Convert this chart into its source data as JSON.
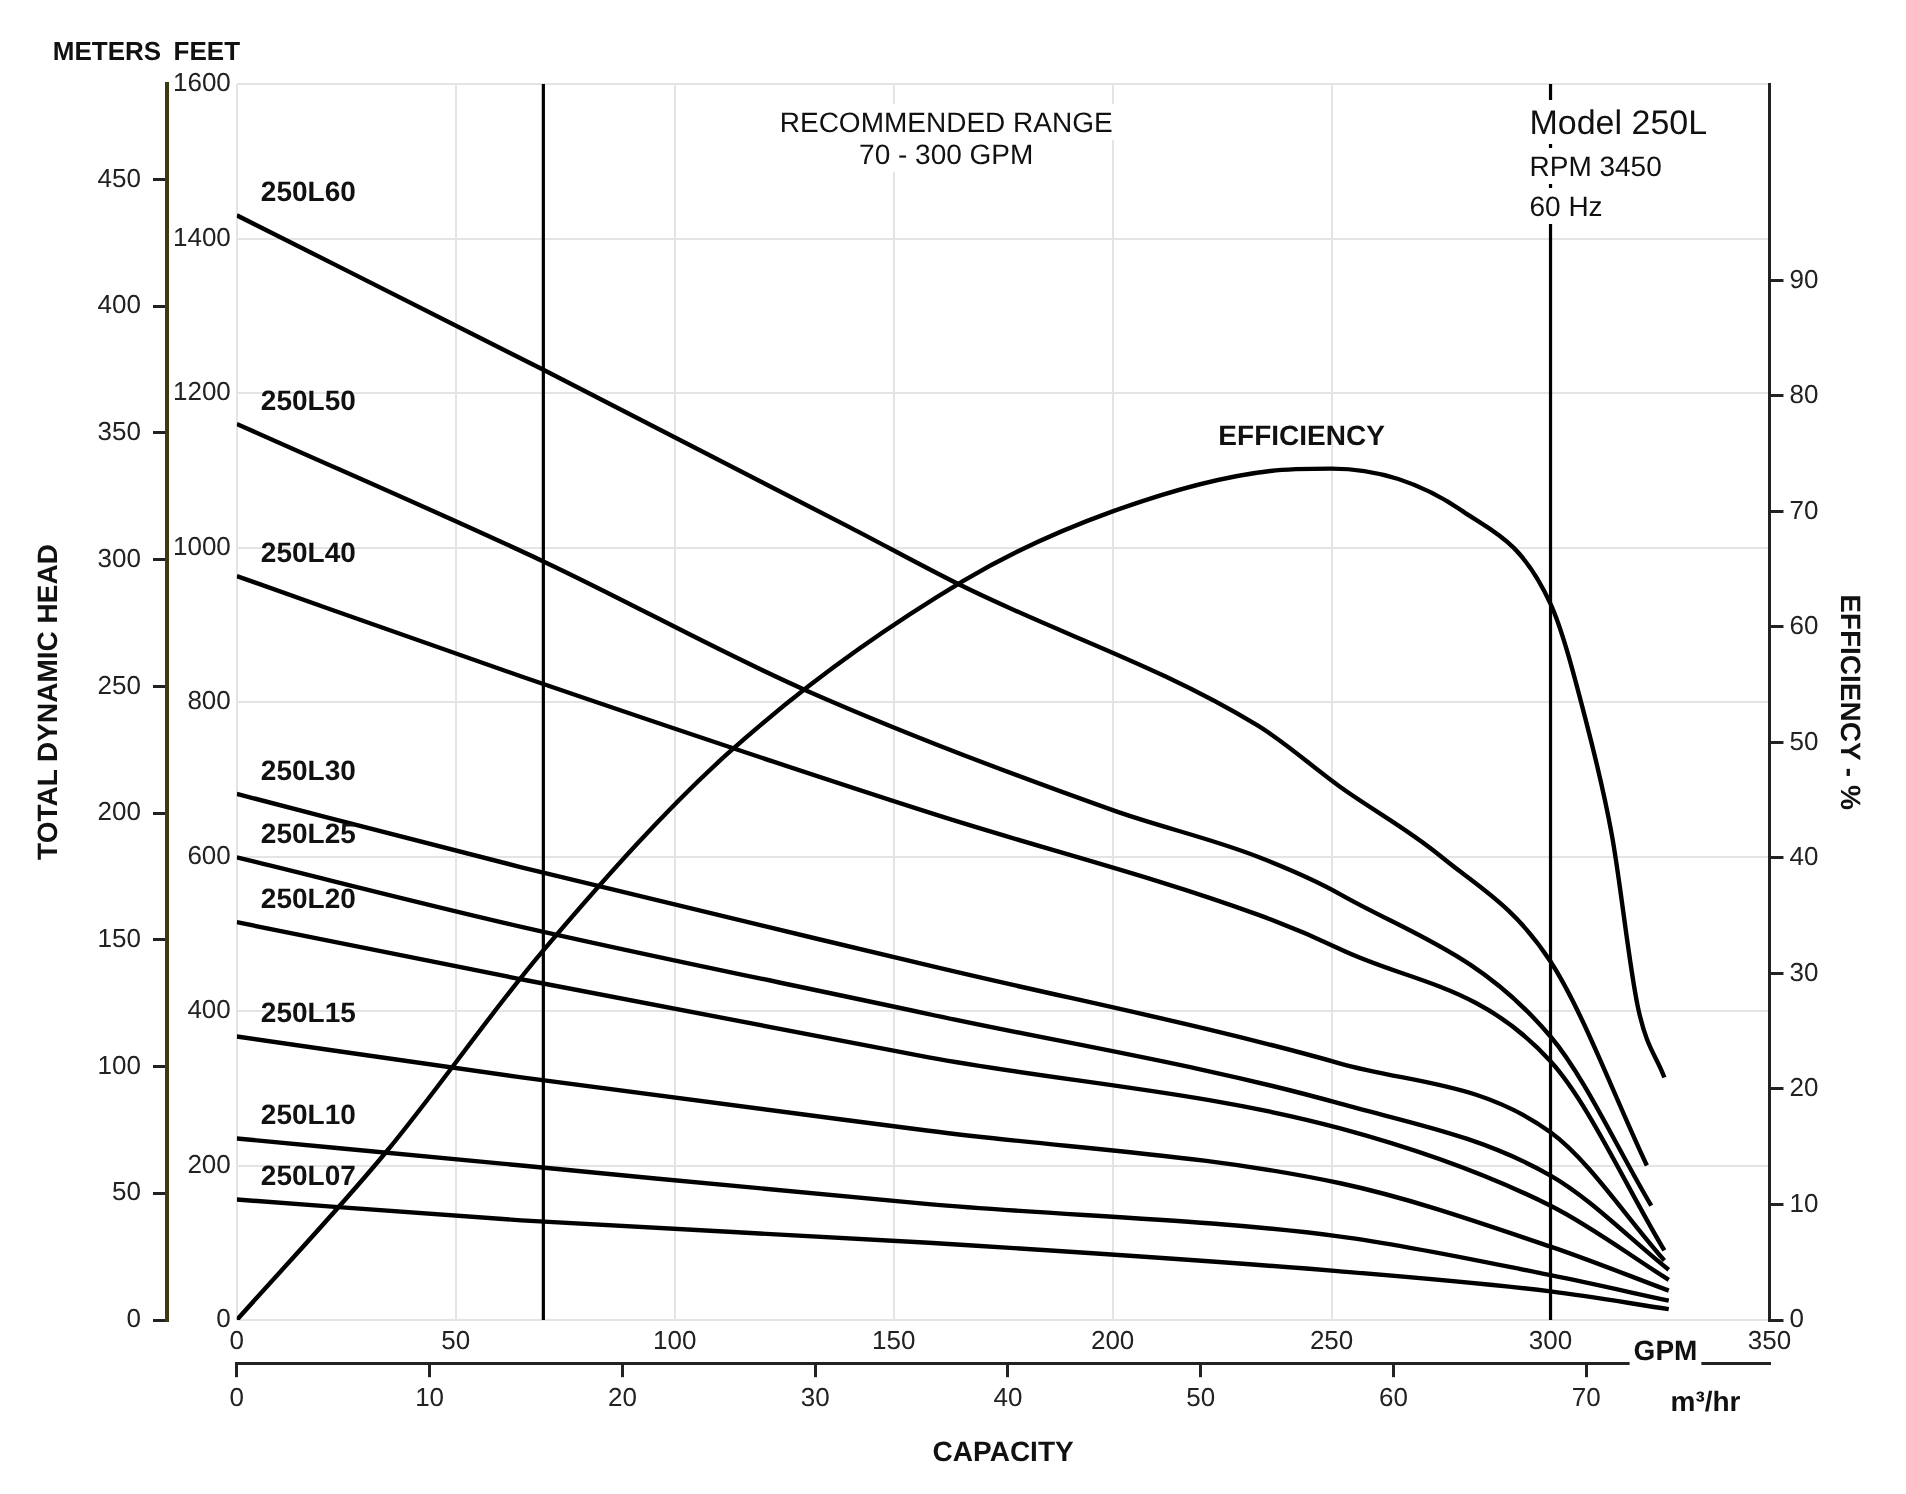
{
  "chart_data": {
    "type": "line",
    "title": "Model 250L",
    "xlabel": "CAPACITY",
    "ylabel": "TOTAL DYNAMIC HEAD",
    "y2label": "EFFICIENCY - %",
    "annotations": [
      "METERS",
      "FEET",
      "RECOMMENDED RANGE",
      "70 - 300 GPM",
      "RPM 3450",
      "60 Hz",
      "GPM",
      "m³/hr"
    ],
    "xlim": [
      0,
      350
    ],
    "xticks": [
      0,
      50,
      100,
      150,
      200,
      250,
      300,
      350
    ],
    "x2lim": [
      0,
      79.5
    ],
    "x2ticks": [
      0,
      10,
      20,
      30,
      40,
      50,
      60,
      70
    ],
    "ylim": [
      0,
      1600
    ],
    "yticks": [
      0,
      200,
      400,
      600,
      800,
      1000,
      1200,
      1400,
      1600
    ],
    "y3lim": [
      0,
      487.7
    ],
    "y3ticks": [
      0,
      50,
      100,
      150,
      200,
      250,
      300,
      350,
      400,
      450
    ],
    "y2lim": [
      0,
      107
    ],
    "y2ticks": [
      0,
      10,
      20,
      30,
      40,
      50,
      60,
      70,
      80,
      90
    ],
    "grid": true,
    "marker": "none",
    "ref_lines": [
      {
        "axis": "x",
        "value": 70,
        "color": "#000000"
      },
      {
        "axis": "x",
        "value": 300,
        "color": "#000000"
      }
    ],
    "series": [
      {
        "name": "250L60",
        "color": "#000000",
        "x": [
          0,
          70,
          140,
          165,
          233,
          252,
          275,
          300,
          322
        ],
        "values": [
          1430,
          1230,
          1026,
          952,
          770,
          690,
          600,
          464,
          200
        ]
      },
      {
        "name": "250L50",
        "color": "#000000",
        "x": [
          0,
          70,
          130,
          200,
          233,
          252,
          300,
          323
        ],
        "values": [
          1160,
          982,
          815,
          660,
          600,
          551,
          367,
          148
        ]
      },
      {
        "name": "250L40",
        "color": "#000000",
        "x": [
          0,
          65,
          158,
          233,
          252,
          300,
          326
        ],
        "values": [
          963,
          833,
          657,
          525,
          480,
          335,
          90
        ]
      },
      {
        "name": "250L30",
        "color": "#000000",
        "x": [
          0,
          65,
          158,
          252,
          300,
          326
        ],
        "values": [
          681,
          586,
          459,
          332,
          243,
          77
        ]
      },
      {
        "name": "250L25",
        "color": "#000000",
        "x": [
          0,
          65,
          158,
          252,
          300,
          327
        ],
        "values": [
          599,
          509,
          396,
          280,
          187,
          65
        ]
      },
      {
        "name": "250L20",
        "color": "#000000",
        "x": [
          0,
          65,
          158,
          252,
          300,
          327
        ],
        "values": [
          515,
          441,
          340,
          248,
          148,
          52
        ]
      },
      {
        "name": "250L15",
        "color": "#000000",
        "x": [
          0,
          65,
          158,
          252,
          300,
          327
        ],
        "values": [
          367,
          314,
          245,
          177,
          95,
          38
        ]
      },
      {
        "name": "250L10",
        "color": "#000000",
        "x": [
          0,
          65,
          158,
          252,
          300,
          327
        ],
        "values": [
          235,
          200,
          150,
          108,
          58,
          25
        ]
      },
      {
        "name": "250L07",
        "color": "#000000",
        "x": [
          0,
          65,
          158,
          252,
          300,
          327
        ],
        "values": [
          156,
          129,
          100,
          63,
          37,
          14
        ]
      },
      {
        "name": "EFFICIENCY",
        "color": "#000000",
        "axis": "y2",
        "x": [
          0,
          34,
          70,
          112,
          166,
          200,
          236,
          250,
          280,
          300,
          308,
          314,
          320,
          326
        ],
        "values": [
          0,
          14.5,
          32,
          49,
          64,
          70,
          73.5,
          73.7,
          70,
          62,
          52,
          42,
          27,
          21
        ]
      }
    ]
  }
}
